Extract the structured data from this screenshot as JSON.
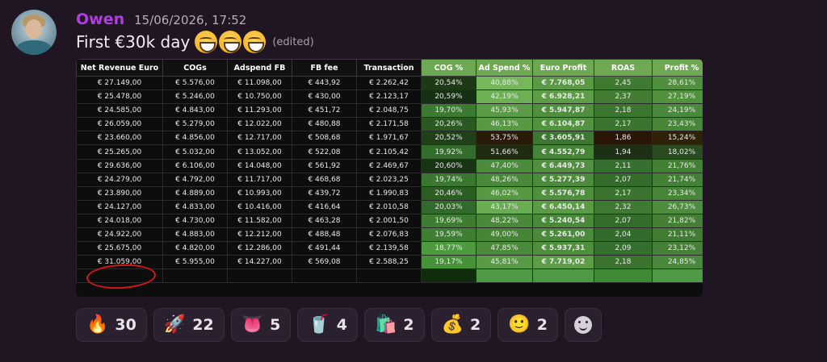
{
  "message": {
    "username": "Owen",
    "timestamp": "15/06/2026, 17:52",
    "text": "First €30k day",
    "emoji_icons": [
      "grinning-face-icon",
      "grinning-face-icon",
      "grinning-face-icon"
    ],
    "edited_label": "(edited)"
  },
  "table": {
    "headers": [
      "Net Revenue Euro",
      "COGs",
      "Adspend FB",
      "FB fee",
      "Transaction",
      "COG %",
      "Ad Spend %",
      "Euro Profit",
      "ROAS",
      "Profit %"
    ],
    "rows": [
      [
        "€ 27.149,00",
        "€ 5.576,00",
        "€ 11.098,00",
        "€ 443,92",
        "€ 2.262,42",
        "20,54%",
        "40,88%",
        "€ 7.768,05",
        "2,45",
        "28,61%"
      ],
      [
        "€ 25.478,00",
        "€ 5.246,00",
        "€ 10.750,00",
        "€ 430,00",
        "€ 2.123,17",
        "20,59%",
        "42,19%",
        "€ 6.928,21",
        "2,37",
        "27,19%"
      ],
      [
        "€ 24.585,00",
        "€ 4.843,00",
        "€ 11.293,00",
        "€ 451,72",
        "€ 2.048,75",
        "19,70%",
        "45,93%",
        "€ 5.947,87",
        "2,18",
        "24,19%"
      ],
      [
        "€ 26.059,00",
        "€ 5.279,00",
        "€ 12.022,00",
        "€ 480,88",
        "€ 2.171,58",
        "20,26%",
        "46,13%",
        "€ 6.104,87",
        "2,17",
        "23,43%"
      ],
      [
        "€ 23.660,00",
        "€ 4.856,00",
        "€ 12.717,00",
        "€ 508,68",
        "€ 1.971,67",
        "20,52%",
        "53,75%",
        "€ 3.605,91",
        "1,86",
        "15,24%"
      ],
      [
        "€ 25.265,00",
        "€ 5.032,00",
        "€ 13.052,00",
        "€ 522,08",
        "€ 2.105,42",
        "19,92%",
        "51,66%",
        "€ 4.552,79",
        "1,94",
        "18,02%"
      ],
      [
        "€ 29.636,00",
        "€ 6.106,00",
        "€ 14.048,00",
        "€ 561,92",
        "€ 2.469,67",
        "20,60%",
        "47,40%",
        "€ 6.449,73",
        "2,11",
        "21,76%"
      ],
      [
        "€ 24.279,00",
        "€ 4.792,00",
        "€ 11.717,00",
        "€ 468,68",
        "€ 2.023,25",
        "19,74%",
        "48,26%",
        "€ 5.277,39",
        "2,07",
        "21,74%"
      ],
      [
        "€ 23.890,00",
        "€ 4.889,00",
        "€ 10.993,00",
        "€ 439,72",
        "€ 1.990,83",
        "20,46%",
        "46,02%",
        "€ 5.576,78",
        "2,17",
        "23,34%"
      ],
      [
        "€ 24.127,00",
        "€ 4.833,00",
        "€ 10.416,00",
        "€ 416,64",
        "€ 2.010,58",
        "20,03%",
        "43,17%",
        "€ 6.450,14",
        "2,32",
        "26,73%"
      ],
      [
        "€ 24.018,00",
        "€ 4.730,00",
        "€ 11.582,00",
        "€ 463,28",
        "€ 2.001,50",
        "19,69%",
        "48,22%",
        "€ 5.240,54",
        "2,07",
        "21,82%"
      ],
      [
        "€ 24.922,00",
        "€ 4.883,00",
        "€ 12.212,00",
        "€ 488,48",
        "€ 2.076,83",
        "19,59%",
        "49,00%",
        "€ 5.261,00",
        "2,04",
        "21,11%"
      ],
      [
        "€ 25.675,00",
        "€ 4.820,00",
        "€ 12.286,00",
        "€ 491,44",
        "€ 2.139,58",
        "18,77%",
        "47,85%",
        "€ 5.937,31",
        "2,09",
        "23,12%"
      ],
      [
        "€ 31.059,00",
        "€ 5.955,00",
        "€ 14.227,00",
        "€ 569,08",
        "€ 2.588,25",
        "19,17%",
        "45,81%",
        "€ 7.719,02",
        "2,18",
        "24,85%"
      ]
    ],
    "cell_colors": [
      [
        null,
        null,
        null,
        null,
        null,
        "#1d3a17",
        "#74b85a",
        "#5a9a44",
        "#3f7a31",
        "#4f8f3e"
      ],
      [
        null,
        null,
        null,
        null,
        null,
        "#163014",
        "#6db054",
        "#5d9d47",
        "#427d33",
        "#52923f"
      ],
      [
        null,
        null,
        null,
        null,
        null,
        "#3b7a30",
        "#5a9c46",
        "#4f8f3e",
        "#3b7530",
        "#4a883b"
      ],
      [
        null,
        null,
        null,
        null,
        null,
        "#2a5a22",
        "#579943",
        "#529340",
        "#3a742f",
        "#478538"
      ],
      [
        null,
        null,
        null,
        null,
        null,
        "#1f4019",
        "#2a1a08",
        "#3d7731",
        "#2a1606",
        "#2e2208"
      ],
      [
        null,
        null,
        null,
        null,
        null,
        "#346d2b",
        "#1f2b10",
        "#468438",
        "#1d3015",
        "#2a4c20"
      ],
      [
        null,
        null,
        null,
        null,
        null,
        "#183415",
        "#4b8b3c",
        "#528f40",
        "#357030",
        "#447f36"
      ],
      [
        null,
        null,
        null,
        null,
        null,
        "#3a782f",
        "#4a893a",
        "#4c8b3c",
        "#336c2b",
        "#447f36"
      ],
      [
        null,
        null,
        null,
        null,
        null,
        "#2c5e24",
        "#579943",
        "#4f8f3e",
        "#3a742f",
        "#478538"
      ],
      [
        null,
        null,
        null,
        null,
        null,
        "#316a2a",
        "#6aac52",
        "#5b9b45",
        "#3f7a32",
        "#4d8d3d"
      ],
      [
        null,
        null,
        null,
        null,
        null,
        "#3d7c31",
        "#4a893a",
        "#498939",
        "#336c2b",
        "#457f36"
      ],
      [
        null,
        null,
        null,
        null,
        null,
        "#3f7f33",
        "#468536",
        "#4a8a3a",
        "#326b2b",
        "#417c35"
      ],
      [
        null,
        null,
        null,
        null,
        null,
        "#4e9a3f",
        "#4a8a3a",
        "#4f8f3e",
        "#356f2e",
        "#467f37"
      ],
      [
        null,
        null,
        null,
        null,
        null,
        "#479138",
        "#589a45",
        "#5d9d47",
        "#3a742f",
        "#4a893b"
      ]
    ],
    "bold_columns": [
      7
    ],
    "header_colors": [
      "#111111",
      "#111111",
      "#111111",
      "#111111",
      "#111111",
      "#6fa853",
      "#6fa853",
      "#6fa853",
      "#6fa853",
      "#6fa853"
    ],
    "empty_row_colors": [
      null,
      null,
      null,
      null,
      null,
      "#0f2d0d",
      "#4f9a44",
      "#4f9a44",
      "#3f8a36",
      "#4f9a44"
    ]
  },
  "reactions": [
    {
      "icon": "fire-icon",
      "glyph": "🔥",
      "count": "30"
    },
    {
      "icon": "rocket-icon",
      "glyph": "🚀",
      "count": "22"
    },
    {
      "icon": "tongue-emoji-icon",
      "glyph": "👅",
      "count": "5"
    },
    {
      "icon": "energy-drink-icon",
      "glyph": "🥤",
      "count": "4"
    },
    {
      "icon": "shopify-bag-icon",
      "glyph": "🛍️",
      "count": "2"
    },
    {
      "icon": "money-bag-icon",
      "glyph": "💰",
      "count": "2"
    },
    {
      "icon": "person-face-icon",
      "glyph": "🙂",
      "count": "2"
    }
  ],
  "add_reaction": {
    "icon": "add-reaction-smile-icon"
  }
}
